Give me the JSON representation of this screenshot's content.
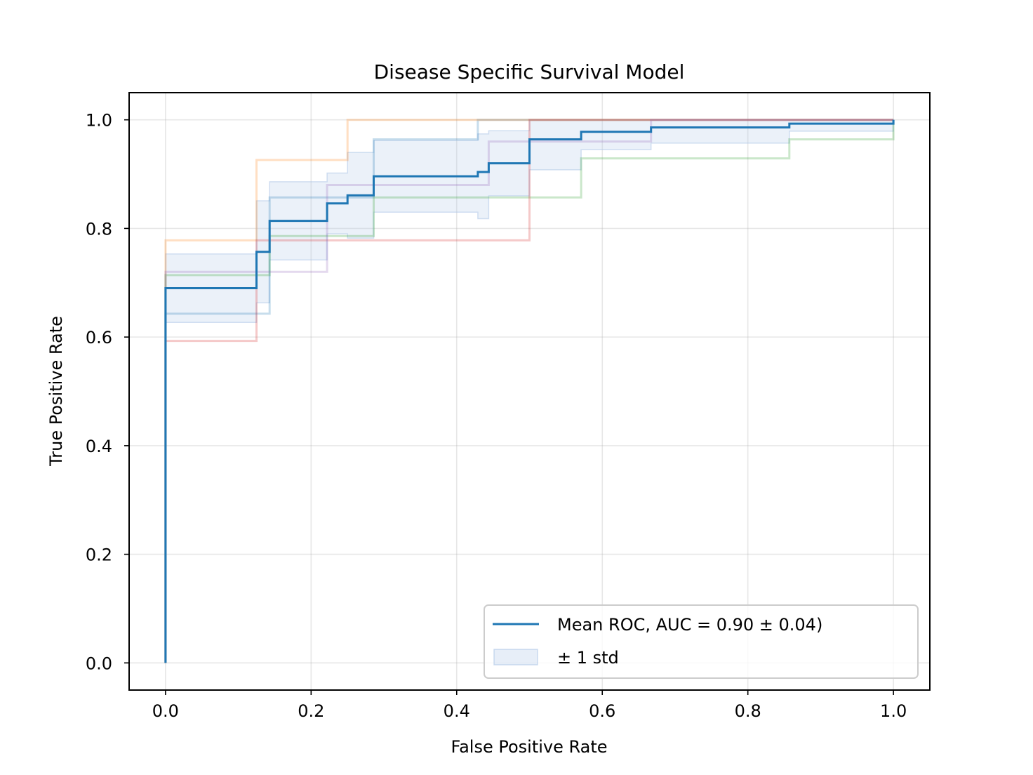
{
  "chart_data": {
    "type": "line",
    "title": "Disease Specific Survival Model",
    "xlabel": "False Positive Rate",
    "ylabel": "True Positive Rate",
    "xlim": [
      -0.05,
      1.05
    ],
    "ylim": [
      -0.05,
      1.05
    ],
    "xticks": [
      0.0,
      0.2,
      0.4,
      0.6,
      0.8,
      1.0
    ],
    "yticks": [
      0.0,
      0.2,
      0.4,
      0.6,
      0.8,
      1.0
    ],
    "xtick_labels": [
      "0.0",
      "0.2",
      "0.4",
      "0.6",
      "0.8",
      "1.0"
    ],
    "ytick_labels": [
      "0.0",
      "0.2",
      "0.4",
      "0.6",
      "0.8",
      "1.0"
    ],
    "grid": true,
    "legend_position": "lower-right",
    "folds": [
      {
        "color": "#1f77b4",
        "x": [
          0,
          0,
          0.143,
          0.143,
          0.286,
          0.286,
          0.429,
          0.429,
          1.0,
          1.0
        ],
        "y": [
          0,
          0.643,
          0.643,
          0.857,
          0.857,
          0.964,
          0.964,
          1.0,
          1.0,
          1.0
        ]
      },
      {
        "color": "#ff7f0e",
        "x": [
          0,
          0,
          0.125,
          0.125,
          0.25,
          0.25,
          1.0
        ],
        "y": [
          0,
          0.778,
          0.778,
          0.926,
          0.926,
          1.0,
          1.0
        ]
      },
      {
        "color": "#2ca02c",
        "x": [
          0,
          0,
          0.143,
          0.143,
          0.286,
          0.286,
          0.571,
          0.571,
          0.857,
          0.857,
          1.0,
          1.0
        ],
        "y": [
          0,
          0.714,
          0.714,
          0.786,
          0.786,
          0.857,
          0.857,
          0.929,
          0.929,
          0.964,
          0.964,
          1.0
        ]
      },
      {
        "color": "#d62728",
        "x": [
          0,
          0,
          0.125,
          0.125,
          0.5,
          0.5,
          1.0
        ],
        "y": [
          0,
          0.593,
          0.593,
          0.778,
          0.778,
          1.0,
          1.0
        ]
      },
      {
        "color": "#9467bd",
        "x": [
          0,
          0,
          0.222,
          0.222,
          0.444,
          0.444,
          0.667,
          0.667,
          1.0
        ],
        "y": [
          0,
          0.72,
          0.72,
          0.88,
          0.88,
          0.96,
          0.96,
          1.0,
          1.0
        ]
      }
    ],
    "series": [
      {
        "name": "Mean ROC, AUC = 0.90 ± 0.04)",
        "color": "#1f77b4",
        "x": [
          0,
          0,
          0.125,
          0.125,
          0.143,
          0.143,
          0.222,
          0.222,
          0.25,
          0.25,
          0.286,
          0.286,
          0.429,
          0.429,
          0.444,
          0.444,
          0.5,
          0.5,
          0.571,
          0.571,
          0.667,
          0.667,
          0.857,
          0.857,
          1.0,
          1.0
        ],
        "y": [
          0,
          0.69,
          0.69,
          0.757,
          0.757,
          0.814,
          0.814,
          0.846,
          0.846,
          0.861,
          0.861,
          0.896,
          0.896,
          0.904,
          0.904,
          0.92,
          0.92,
          0.964,
          0.964,
          0.978,
          0.978,
          0.986,
          0.986,
          0.993,
          0.993,
          1.0
        ]
      }
    ],
    "std_band": {
      "name": "± 1 std",
      "color": "#aec7e8",
      "x": [
        0,
        0.125,
        0.143,
        0.222,
        0.25,
        0.286,
        0.429,
        0.444,
        0.5,
        0.571,
        0.667,
        0.857,
        1.0
      ],
      "lower": [
        0.627,
        0.663,
        0.742,
        0.79,
        0.782,
        0.83,
        0.818,
        0.86,
        0.908,
        0.945,
        0.957,
        0.979,
        1.0
      ],
      "upper": [
        0.753,
        0.851,
        0.886,
        0.902,
        0.94,
        0.962,
        0.974,
        0.98,
        1.0,
        1.0,
        1.0,
        1.0,
        1.0
      ]
    }
  }
}
